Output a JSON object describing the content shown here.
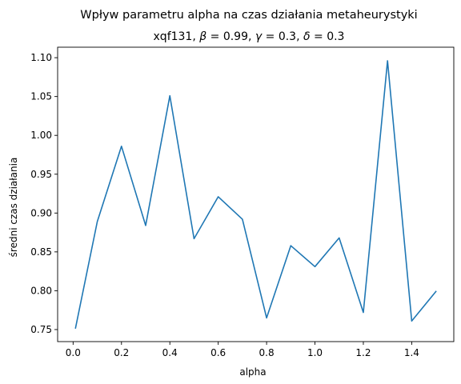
{
  "suptitle": "Wpływ parametru alpha na czas działania metaheurystyki",
  "chart_data": {
    "type": "line",
    "title": "xqf131, β = 0.99, γ = 0.3, δ = 0.3",
    "xlabel": "alpha",
    "ylabel": "średni czas działania",
    "xlim": [
      -0.064,
      1.574
    ],
    "ylim": [
      0.7345,
      1.1135
    ],
    "xticks": [
      0.0,
      0.2,
      0.4,
      0.6,
      0.8,
      1.0,
      1.2,
      1.4
    ],
    "xtick_labels": [
      "0.0",
      "0.2",
      "0.4",
      "0.6",
      "0.8",
      "1.0",
      "1.2",
      "1.4"
    ],
    "yticks": [
      0.75,
      0.8,
      0.85,
      0.9,
      0.95,
      1.0,
      1.05,
      1.1
    ],
    "ytick_labels": [
      "0.75",
      "0.80",
      "0.85",
      "0.90",
      "0.95",
      "1.00",
      "1.05",
      "1.10"
    ],
    "grid": false,
    "series": [
      {
        "color": "#1f77b4",
        "x": [
          0.01,
          0.1,
          0.2,
          0.3,
          0.4,
          0.5,
          0.6,
          0.7,
          0.8,
          0.9,
          1.0,
          1.1,
          1.2,
          1.3,
          1.4,
          1.5
        ],
        "y": [
          0.752,
          0.889,
          0.986,
          0.884,
          1.051,
          0.867,
          0.921,
          0.892,
          0.765,
          0.858,
          0.831,
          0.868,
          0.772,
          1.096,
          0.761,
          0.799
        ]
      }
    ]
  }
}
